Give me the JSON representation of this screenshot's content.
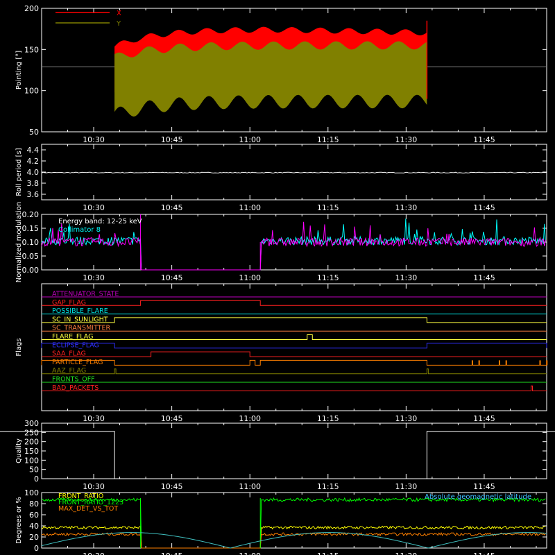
{
  "chart_data": [
    {
      "id": "pointing",
      "type": "line",
      "ylabel": "Pointing [°]",
      "ylim": [
        50,
        200
      ],
      "yticks": [
        50,
        100,
        150,
        200
      ],
      "legend": {
        "placement": "top-left",
        "entries": [
          {
            "label": "X",
            "color": "#ff0000"
          },
          {
            "label": "Y",
            "color": "#808000"
          }
        ]
      },
      "series": [
        {
          "name": "X",
          "color": "#ff0000",
          "start": "10:34",
          "end": "11:34",
          "baseline": 129,
          "band_low": [
            90,
            103
          ],
          "band_high": [
            150,
            178
          ]
        },
        {
          "name": "Y",
          "color": "#808000",
          "start": "10:34",
          "end": "11:34",
          "band_low": [
            62,
            95
          ],
          "band_high": [
            135,
            160
          ]
        }
      ]
    },
    {
      "id": "roll",
      "type": "line",
      "ylabel": "Roll period [s]",
      "ylim": [
        3.5,
        4.5
      ],
      "yticks": [
        3.6,
        3.8,
        4.0,
        4.2,
        4.4
      ],
      "series": [
        {
          "name": "roll",
          "color": "#ffffff",
          "value": 3.99
        }
      ]
    },
    {
      "id": "modulation",
      "type": "line",
      "ylabel": "Normalized modulation",
      "ylim": [
        0,
        0.2
      ],
      "yticks": [
        0.0,
        0.05,
        0.1,
        0.15,
        0.2
      ],
      "annotations": [
        {
          "text": "Energy band: 12-25 keV",
          "color": "#ffffff"
        },
        {
          "text": "Collimator 8",
          "color": "#00ffff"
        }
      ],
      "gaps": [
        [
          "10:39",
          "11:02"
        ]
      ],
      "series": [
        {
          "name": "cyan",
          "color": "#00ffff",
          "mean": 0.105
        },
        {
          "name": "magenta",
          "color": "#ff00ff",
          "mean": 0.1
        }
      ]
    },
    {
      "id": "flags",
      "type": "line",
      "ylabel": "Flags",
      "flags": [
        {
          "label": "ATTENUATOR_STATE",
          "color": "#c000c0",
          "segments": []
        },
        {
          "label": "GAP_FLAG",
          "color": "#ff2020",
          "segments": [
            [
              "10:39",
              "11:02"
            ]
          ]
        },
        {
          "label": "POSSIBLE_FLARE",
          "color": "#00e0e0",
          "segments": []
        },
        {
          "label": "SC_IN_SUNLIGHT",
          "color": "#ffff40",
          "segments": [
            [
              "10:34",
              "11:34"
            ]
          ]
        },
        {
          "label": "SC_TRANSMITTER",
          "color": "#ff8040",
          "segments": []
        },
        {
          "label": "FLARE_FLAG",
          "color": "#ffff40",
          "segments": [
            [
              "11:11",
              "11:12"
            ]
          ]
        },
        {
          "label": "ECLIPSE_FLAG",
          "color": "#3030ff",
          "segments": [
            [
              "10:00",
              "10:34"
            ],
            [
              "11:34",
              "12:00"
            ]
          ]
        },
        {
          "label": "SAA_FLAG",
          "color": "#ff2020",
          "segments": [
            [
              "10:41",
              "11:00"
            ]
          ]
        },
        {
          "label": "PARTICLE_FLAG",
          "color": "#ff8000",
          "segments": [
            [
              "10:00",
              "10:34"
            ],
            [
              "11:00",
              "11:01"
            ],
            [
              "11:02",
              "11:34"
            ]
          ]
        },
        {
          "label": "AAZ_FLAG",
          "color": "#808000",
          "segments": [
            [
              "10:34",
              "10:34"
            ],
            [
              "11:34",
              "11:34"
            ]
          ]
        },
        {
          "label": "FRONTS_OFF",
          "color": "#20e020",
          "segments": []
        },
        {
          "label": "BAD_PACKETS",
          "color": "#ff2020",
          "segments": [
            [
              "11:54",
              "11:54"
            ]
          ]
        }
      ]
    },
    {
      "id": "quality",
      "type": "line",
      "ylabel": "Quality",
      "ylim": [
        0,
        300
      ],
      "yticks": [
        0,
        50,
        100,
        150,
        200,
        250,
        300
      ],
      "series": [
        {
          "name": "quality",
          "color": "#ffffff",
          "points": [
            [
              "10:00",
              256
            ],
            [
              "10:34",
              256
            ],
            [
              "10:34",
              0
            ],
            [
              "11:34",
              0
            ],
            [
              "11:34",
              256
            ],
            [
              "12:00",
              256
            ]
          ]
        }
      ]
    },
    {
      "id": "degrees",
      "type": "line",
      "ylabel": "Degrees or %",
      "ylim": [
        0,
        100
      ],
      "yticks": [
        0,
        20,
        40,
        60,
        80,
        100
      ],
      "annotations": [
        {
          "text": "Absolute geomagnetic latitude",
          "color": "#40c0ff"
        }
      ],
      "legend": {
        "placement": "top-left",
        "entries": [
          {
            "label": "FRONT_RATIO",
            "color": "#ffff00"
          },
          {
            "label": "FRONT_RATIO_1223",
            "color": "#00ff00"
          },
          {
            "label": "MAX_DET_VS_TOT",
            "color": "#ff8000"
          }
        ]
      },
      "gaps": [
        [
          "10:39",
          "11:02"
        ]
      ],
      "series": [
        {
          "name": "FRONT_RATIO",
          "color": "#ffff00",
          "mean": 37
        },
        {
          "name": "FRONT_RATIO_1223",
          "color": "#00ff00",
          "mean": 87
        },
        {
          "name": "MAX_DET_VS_TOT",
          "color": "#ff8000",
          "mean": 25
        },
        {
          "name": "Absolute geomagnetic latitude",
          "color": "#40c0c0",
          "min": 0,
          "max": 28
        }
      ]
    }
  ],
  "time_axis": {
    "start": "10:20",
    "end": "11:57",
    "ticks": [
      "10:30",
      "10:45",
      "11:00",
      "11:15",
      "11:30",
      "11:45"
    ]
  }
}
